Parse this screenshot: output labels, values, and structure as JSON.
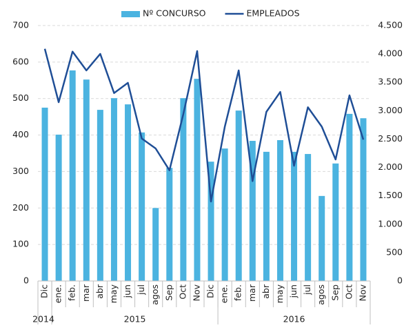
{
  "chart_data": {
    "type": "bar",
    "categories": [
      "Dic",
      "ene.",
      "feb.",
      "mar",
      "abr",
      "may",
      "jun",
      "jul",
      "agos",
      "Sep",
      "Oct",
      "Nov",
      "Dic",
      "ene.",
      "feb.",
      "mar",
      "abr",
      "may",
      "jun",
      "jul",
      "agos",
      "Sep",
      "Oct",
      "Nov"
    ],
    "years": [
      "2014",
      "2015",
      "2015",
      "2015",
      "2015",
      "2015",
      "2015",
      "2015",
      "2015",
      "2015",
      "2015",
      "2015",
      "2015",
      "2016",
      "2016",
      "2016",
      "2016",
      "2016",
      "2016",
      "2016",
      "2016",
      "2016",
      "2016",
      "2016"
    ],
    "series": [
      {
        "name": "Nº CONCURSO",
        "type": "bar",
        "color": "#4bb3e0",
        "values": [
          475,
          401,
          577,
          552,
          469,
          501,
          484,
          407,
          200,
          310,
          501,
          554,
          327,
          363,
          467,
          384,
          354,
          386,
          354,
          348,
          233,
          322,
          458,
          446
        ]
      },
      {
        "name": "EMPLEADOS",
        "type": "line",
        "color": "#1f4e96",
        "axis": "y2",
        "values": [
          4090,
          3150,
          4040,
          3710,
          4000,
          3310,
          3490,
          2510,
          2335,
          1950,
          2940,
          4050,
          1400,
          2720,
          3710,
          1760,
          2980,
          3330,
          2030,
          3060,
          2720,
          2140,
          3270,
          2490
        ]
      }
    ],
    "ylim": [
      0,
      700
    ],
    "yticks": [
      0,
      100,
      200,
      300,
      400,
      500,
      600,
      700
    ],
    "y2lim": [
      0,
      4500
    ],
    "y2ticks": [
      0,
      500,
      {
        "value": 1000,
        "label": "1.000"
      },
      {
        "value": 1500,
        "label": "1.500"
      },
      {
        "value": 2000,
        "label": "2.000"
      },
      {
        "value": 2500,
        "label": "2.500"
      },
      {
        "value": 3000,
        "label": "3.000"
      },
      {
        "value": 3500,
        "label": "3.500"
      },
      {
        "value": 4000,
        "label": "4.000"
      },
      {
        "value": 4500,
        "label": "4.500"
      }
    ],
    "grid": true,
    "legend": "top"
  }
}
